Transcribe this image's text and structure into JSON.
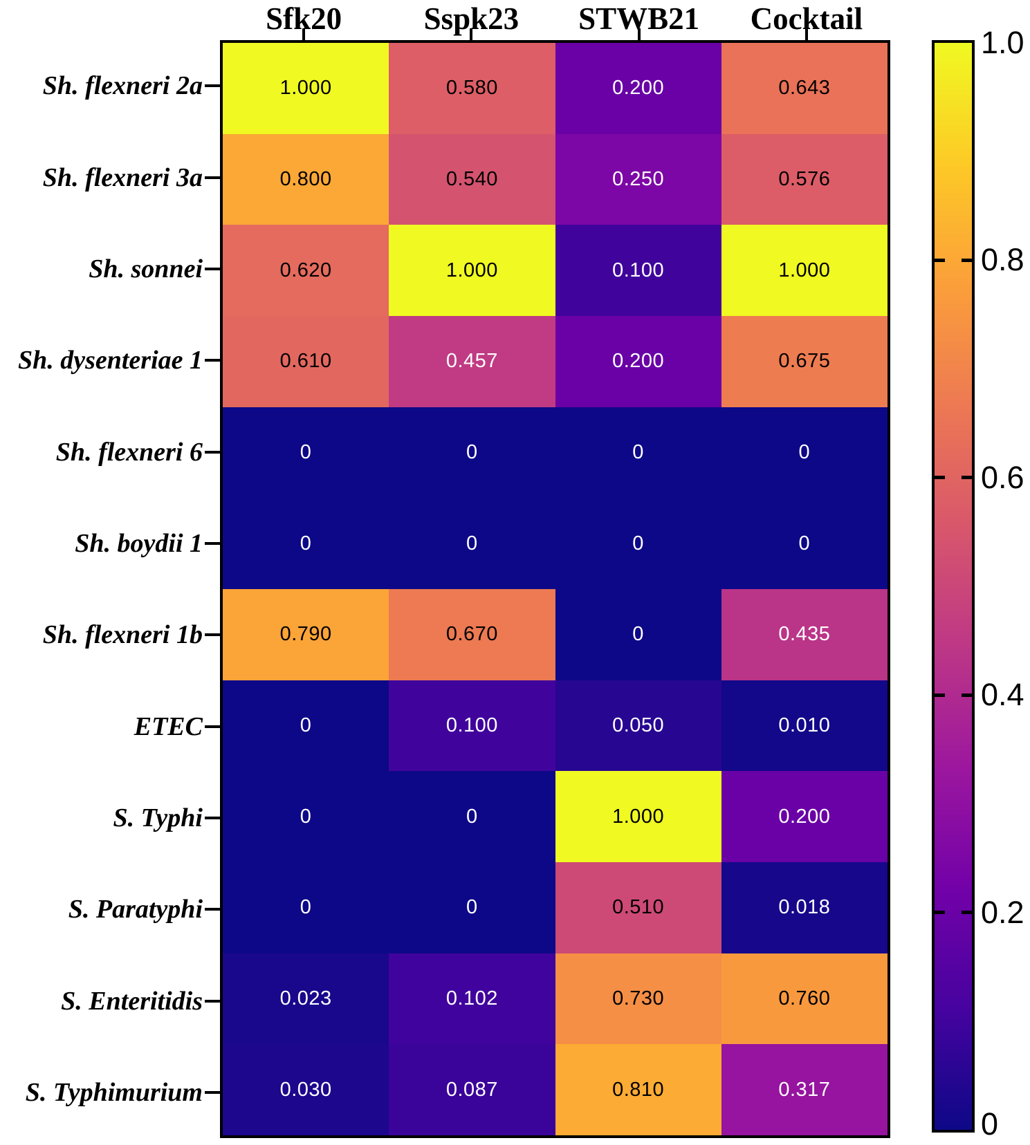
{
  "chart_data": {
    "type": "heatmap",
    "title": "",
    "xlabel": "",
    "ylabel": "",
    "columns": [
      "Sfk20",
      "Sspk23",
      "STWB21",
      "Cocktail"
    ],
    "rows": [
      "Sh. flexneri 2a",
      "Sh. flexneri 3a",
      "Sh. sonnei",
      "Sh. dysenteriae 1",
      "Sh. flexneri 6",
      "Sh. boydii 1",
      "Sh. flexneri 1b",
      "ETEC",
      "S. Typhi",
      "S. Paratyphi",
      "S. Enteritidis",
      "S. Typhimurium"
    ],
    "values": [
      [
        1.0,
        0.58,
        0.2,
        0.643
      ],
      [
        0.8,
        0.54,
        0.25,
        0.576
      ],
      [
        0.62,
        1.0,
        0.1,
        1.0
      ],
      [
        0.61,
        0.457,
        0.2,
        0.675
      ],
      [
        0,
        0,
        0,
        0
      ],
      [
        0,
        0,
        0,
        0
      ],
      [
        0.79,
        0.67,
        0,
        0.435
      ],
      [
        0,
        0.1,
        0.05,
        0.01
      ],
      [
        0,
        0,
        1.0,
        0.2
      ],
      [
        0,
        0,
        0.51,
        0.018
      ],
      [
        0.023,
        0.102,
        0.73,
        0.76
      ],
      [
        0.03,
        0.087,
        0.81,
        0.317
      ]
    ],
    "labels": [
      [
        "1.000",
        "0.580",
        "0.200",
        "0.643"
      ],
      [
        "0.800",
        "0.540",
        "0.250",
        "0.576"
      ],
      [
        "0.620",
        "1.000",
        "0.100",
        "1.000"
      ],
      [
        "0.610",
        "0.457",
        "0.200",
        "0.675"
      ],
      [
        "0",
        "0",
        "0",
        "0"
      ],
      [
        "0",
        "0",
        "0",
        "0"
      ],
      [
        "0.790",
        "0.670",
        "0",
        "0.435"
      ],
      [
        "0",
        "0.100",
        "0.050",
        "0.010"
      ],
      [
        "0",
        "0",
        "1.000",
        "0.200"
      ],
      [
        "0",
        "0",
        "0.510",
        "0.018"
      ],
      [
        "0.023",
        "0.102",
        "0.730",
        "0.760"
      ],
      [
        "0.030",
        "0.087",
        "0.810",
        "0.317"
      ]
    ],
    "value_range": [
      0,
      1
    ],
    "grid": false,
    "legend_position": "right",
    "colorbar": {
      "min": 0,
      "max": 1,
      "ticks": [
        {
          "label": "1.0",
          "value": 1.0
        },
        {
          "label": "0.8",
          "value": 0.8
        },
        {
          "label": "0.6",
          "value": 0.6
        },
        {
          "label": "0.4",
          "value": 0.4
        },
        {
          "label": "0.2",
          "value": 0.2
        },
        {
          "label": "0",
          "value": 0
        }
      ]
    },
    "colormap": {
      "name": "plasma",
      "stops": [
        "#0d0887",
        "#46039f",
        "#7201a8",
        "#9c179e",
        "#bd3786",
        "#d8576b",
        "#ed7953",
        "#fb9f3a",
        "#fdca26",
        "#f0f921"
      ]
    }
  },
  "colors": {
    "background": "#ffffff",
    "border": "#000000",
    "text_dark": "#000000",
    "text_light": "#ffffff"
  }
}
